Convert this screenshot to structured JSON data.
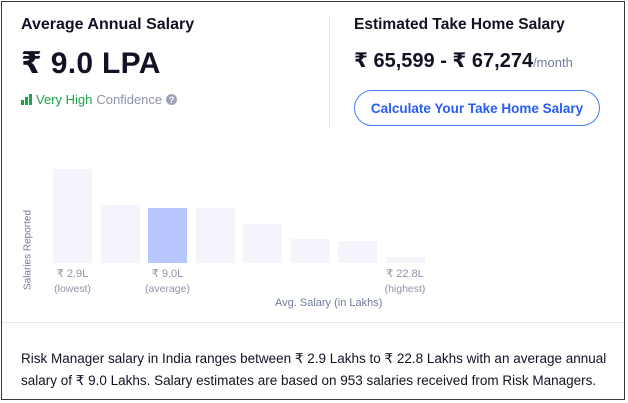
{
  "average_salary": {
    "title": "Average Annual Salary",
    "value": "₹ 9.0 LPA",
    "confidence_level": "Very High",
    "confidence_label": "Confidence",
    "help_glyph": "?"
  },
  "take_home": {
    "title": "Estimated Take Home Salary",
    "range": "₹ 65,599 - ₹ 67,274",
    "per": "/month",
    "button_label": "Calculate Your Take Home Salary"
  },
  "colors": {
    "confidence_green": "#1da34a",
    "accent_blue": "#275df5",
    "bar_default": "#f3f4fc",
    "bar_highlight": "#b8c7ff"
  },
  "chart_data": {
    "type": "bar",
    "ylabel": "Salaries Reported",
    "xlabel": "Avg. Salary (in Lakhs)",
    "values": [
      100,
      62,
      58,
      58,
      42,
      26,
      23,
      6
    ],
    "highlight_index": 2,
    "ticks": [
      {
        "value": "₹ 2.9L",
        "note": "(lowest)",
        "bar_index": 0
      },
      {
        "value": "₹ 9.0L",
        "note": "(average)",
        "bar_index": 2
      },
      {
        "value": "₹ 22.8L",
        "note": "(highest)",
        "bar_index": 7
      }
    ]
  },
  "description": "Risk Manager salary in India ranges between ₹ 2.9 Lakhs to ₹ 22.8 Lakhs with an average annual salary of ₹ 9.0 Lakhs. Salary estimates are based on 953 salaries received from Risk Managers."
}
